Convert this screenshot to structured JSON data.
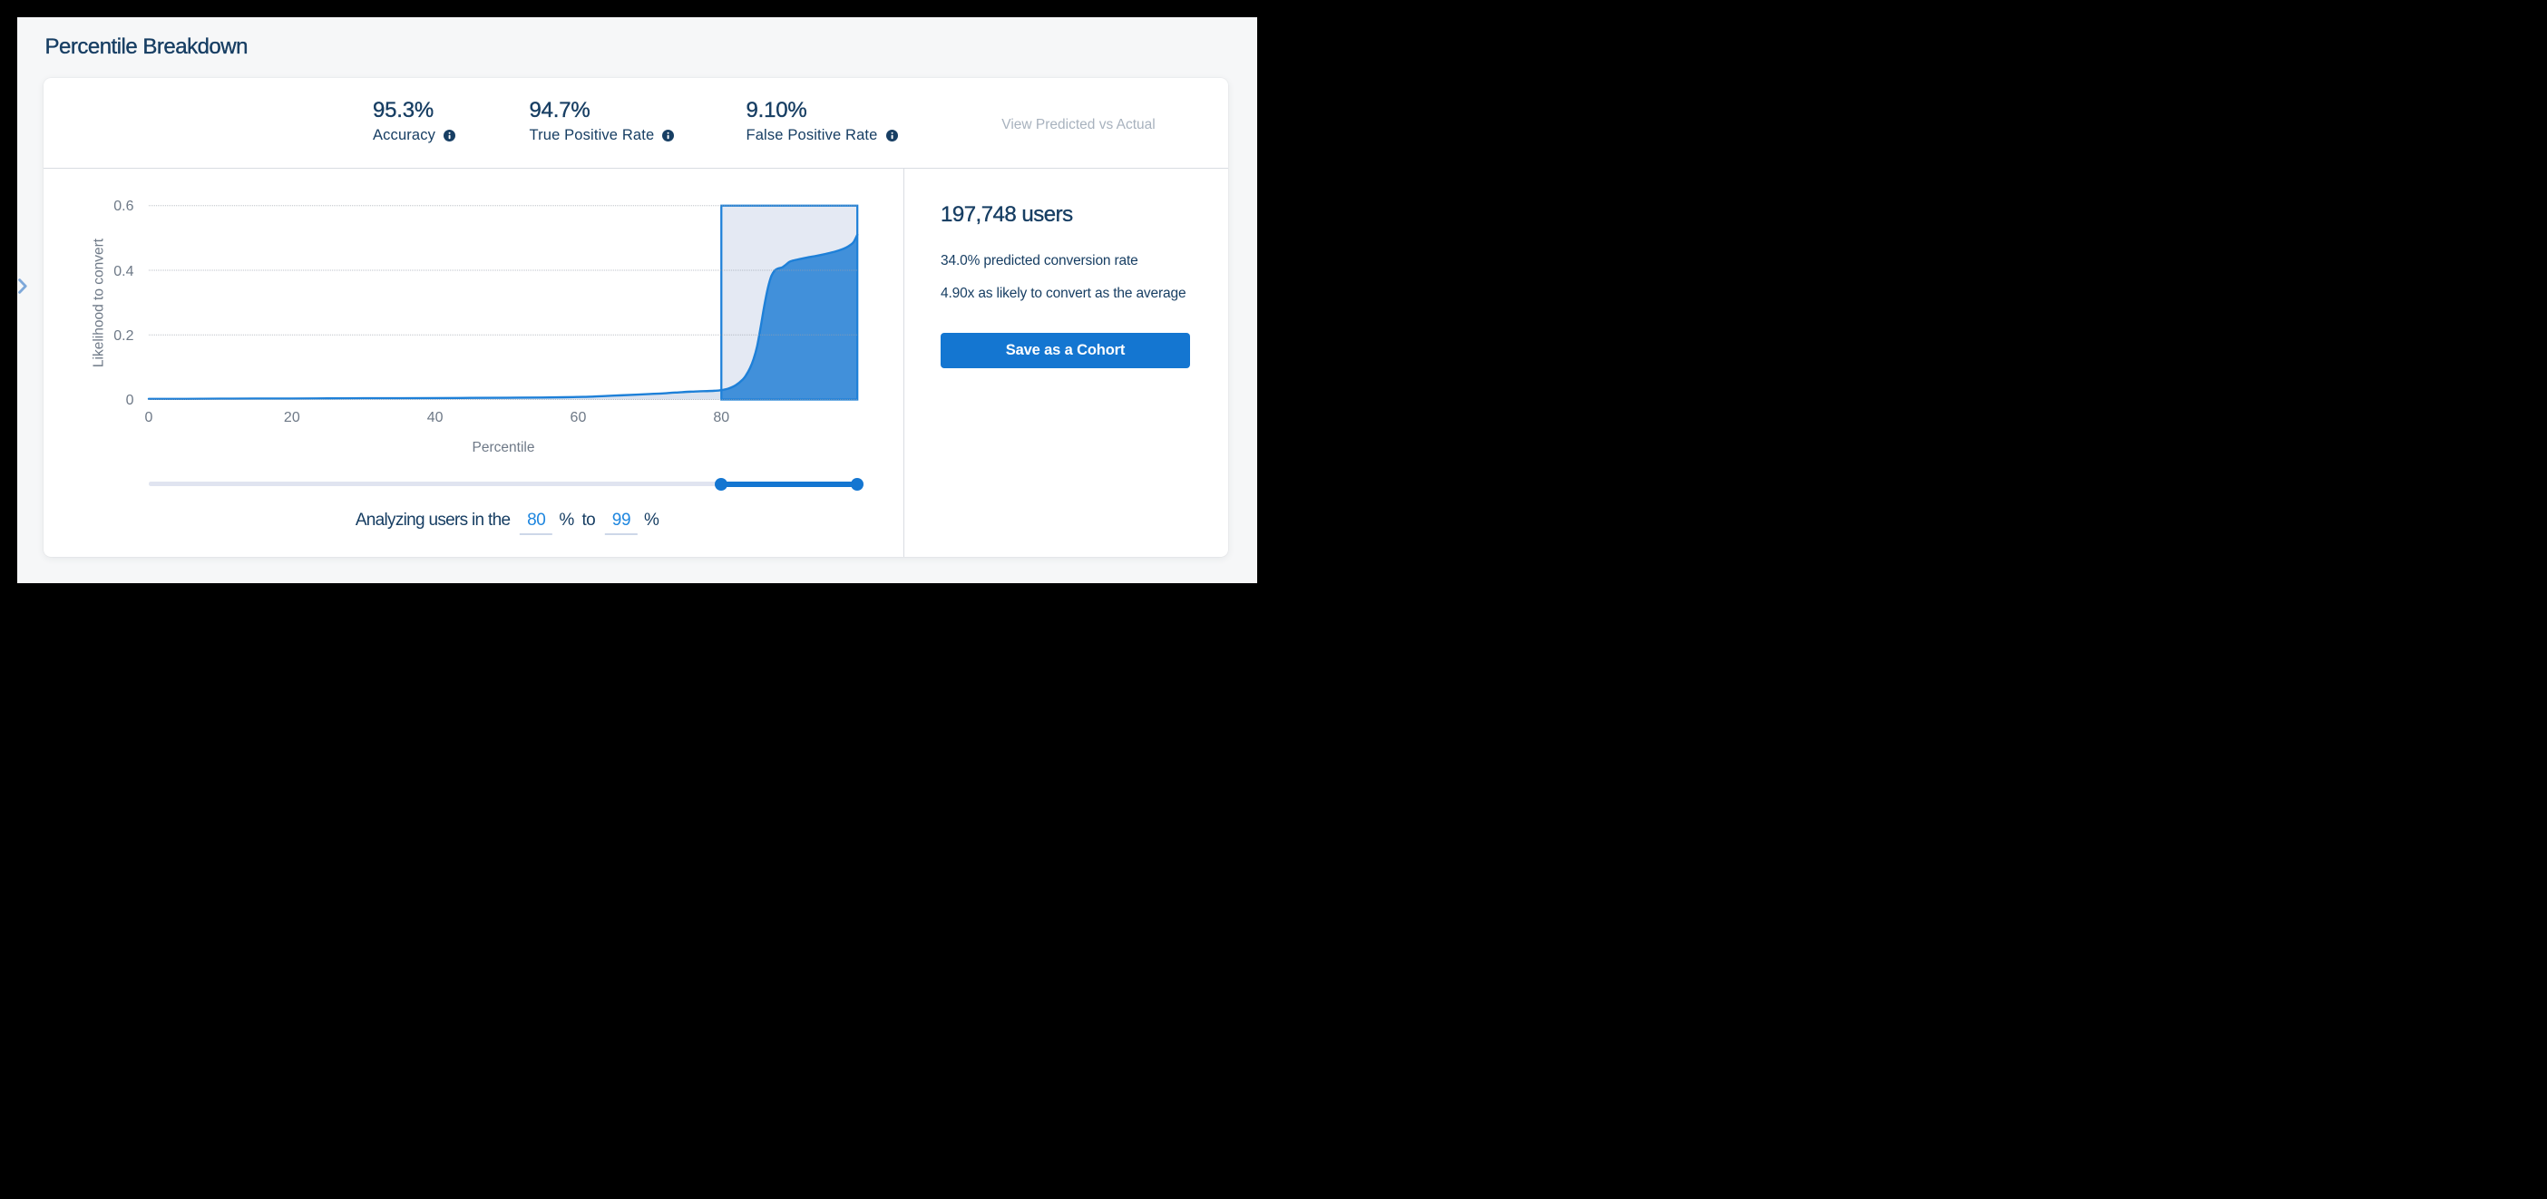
{
  "page": {
    "title": "Percentile Breakdown"
  },
  "collapse_chevron": {
    "icon": "chevron-right",
    "color": "#7ea8d9"
  },
  "stats_header": {
    "stats": [
      {
        "value": "95.3%",
        "label": "Accuracy",
        "info_icon": "info-icon"
      },
      {
        "value": "94.7%",
        "label": "True Positive Rate",
        "info_icon": "info-icon"
      },
      {
        "value": "9.10%",
        "label": "False Positive Rate",
        "info_icon": "info-icon"
      }
    ],
    "view_link": "View Predicted vs Actual"
  },
  "chart_data": {
    "type": "area",
    "title": "",
    "xlabel": "Percentile",
    "ylabel": "Likelihood to convert",
    "xlim": [
      0,
      99
    ],
    "ylim": [
      0,
      0.6
    ],
    "xticks": [
      0,
      20,
      40,
      60,
      80
    ],
    "yticks": [
      0,
      0.2,
      0.4,
      0.6
    ],
    "grid": "horizontal dotted gridlines",
    "legend": "none",
    "selection": {
      "from": 80,
      "to": 99
    },
    "series": [
      {
        "name": "Likelihood to convert by percentile",
        "points": [
          [
            0,
            0.002
          ],
          [
            5,
            0.002
          ],
          [
            10,
            0.0025
          ],
          [
            15,
            0.003
          ],
          [
            20,
            0.003
          ],
          [
            25,
            0.0035
          ],
          [
            30,
            0.004
          ],
          [
            35,
            0.004
          ],
          [
            40,
            0.0045
          ],
          [
            45,
            0.005
          ],
          [
            50,
            0.0055
          ],
          [
            55,
            0.006
          ],
          [
            58,
            0.007
          ],
          [
            60,
            0.008
          ],
          [
            62,
            0.009
          ],
          [
            64,
            0.011
          ],
          [
            66,
            0.013
          ],
          [
            68,
            0.015
          ],
          [
            70,
            0.017
          ],
          [
            72,
            0.019
          ],
          [
            73,
            0.021
          ],
          [
            74,
            0.022
          ],
          [
            75,
            0.0235
          ],
          [
            76,
            0.0245
          ],
          [
            77,
            0.0255
          ],
          [
            78,
            0.026
          ],
          [
            79,
            0.027
          ],
          [
            80,
            0.029
          ],
          [
            81,
            0.034
          ],
          [
            82,
            0.044
          ],
          [
            83,
            0.062
          ],
          [
            83.5,
            0.077
          ],
          [
            84,
            0.097
          ],
          [
            84.5,
            0.125
          ],
          [
            85,
            0.165
          ],
          [
            85.5,
            0.225
          ],
          [
            86,
            0.29
          ],
          [
            86.5,
            0.345
          ],
          [
            87,
            0.383
          ],
          [
            87.5,
            0.4
          ],
          [
            88,
            0.406
          ],
          [
            88.5,
            0.409
          ],
          [
            89,
            0.417
          ],
          [
            89.5,
            0.426
          ],
          [
            90,
            0.43
          ],
          [
            91,
            0.435
          ],
          [
            92,
            0.4395
          ],
          [
            93,
            0.4435
          ],
          [
            94,
            0.448
          ],
          [
            95,
            0.453
          ],
          [
            96,
            0.4585
          ],
          [
            97,
            0.466
          ],
          [
            97.5,
            0.471
          ],
          [
            98,
            0.478
          ],
          [
            98.5,
            0.488
          ],
          [
            99,
            0.51
          ]
        ]
      }
    ]
  },
  "slider": {
    "min": 0,
    "max": 99,
    "from": 80,
    "to": 99
  },
  "analyzing": {
    "before": "Analyzing users in the",
    "from_value": "80",
    "unit1": "%",
    "between": "to",
    "to_value": "99",
    "unit2": "%"
  },
  "side_panel": {
    "users": "197,748 users",
    "predicted": "34.0% predicted conversion rate",
    "likelihood": "4.90x as likely to convert as the average",
    "save_button": "Save as a Cohort"
  },
  "colors": {
    "navy_text": "#173e63",
    "accent_blue": "#1476d1",
    "curve_blue": "#1e80d8",
    "selection_fill": "#4190da",
    "selection_bg": "#e4e9f3",
    "unselected_area_fill": "#dbe2ee",
    "muted_link": "#a9b3c0",
    "axis_text": "#6f7a87",
    "page_bg": "#f6f7f8"
  }
}
